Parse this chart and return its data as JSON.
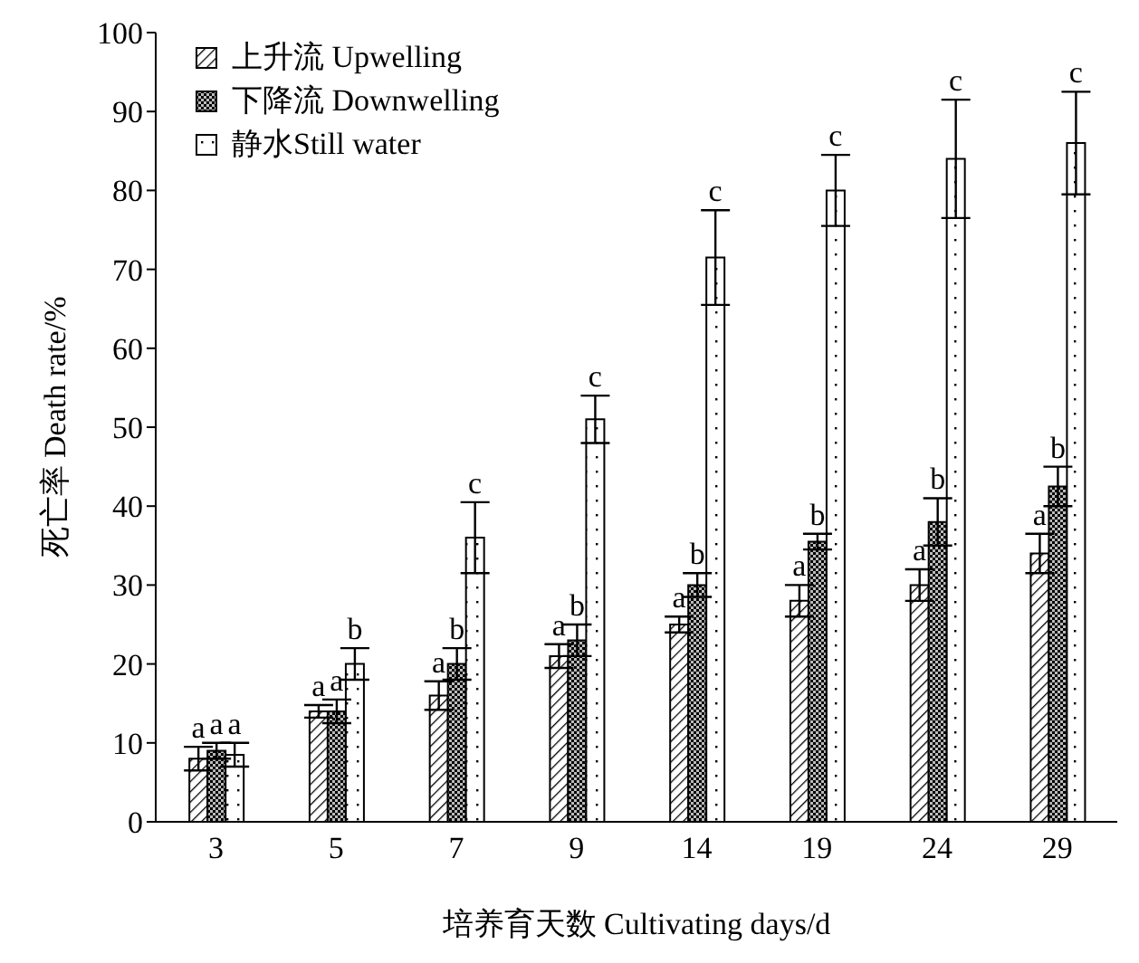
{
  "chart_data": {
    "type": "bar",
    "xlabel": "培养育天数 Cultivating days/d",
    "ylabel": "死亡率 Death rate/%",
    "categories": [
      "3",
      "5",
      "7",
      "9",
      "14",
      "19",
      "24",
      "29"
    ],
    "series": [
      {
        "name": "上升流 Upwelling",
        "color": "#000000",
        "values": [
          8,
          14,
          16,
          21,
          25,
          28,
          30,
          34
        ],
        "errors": [
          1.5,
          0.8,
          1.8,
          1.5,
          1,
          2,
          2,
          2.5
        ]
      },
      {
        "name": "下降流 Downwelling",
        "color": "#000000",
        "values": [
          9,
          14,
          20,
          23,
          30,
          35.5,
          38,
          42.5
        ],
        "errors": [
          1,
          1.5,
          2,
          2,
          1.5,
          1,
          3,
          2.5
        ]
      },
      {
        "name": "静水Still water",
        "color": "#000000",
        "values": [
          8.5,
          20,
          36,
          51,
          71.5,
          80,
          84,
          86
        ],
        "errors": [
          1.5,
          2,
          4.5,
          3,
          6,
          4.5,
          7.5,
          6.5
        ]
      }
    ],
    "annotations": [
      {
        "text": "a",
        "x": "3",
        "y": 9.5
      },
      {
        "text": "a",
        "x": "3",
        "y": 10
      },
      {
        "text": "a",
        "x": "3",
        "y": 10
      },
      {
        "text": "a",
        "x": "5",
        "y": 14.8
      },
      {
        "text": "a",
        "x": "5",
        "y": 15.5
      },
      {
        "text": "b",
        "x": "5",
        "y": 22
      },
      {
        "text": "a",
        "x": "7",
        "y": 17.8
      },
      {
        "text": "b",
        "x": "7",
        "y": 22
      },
      {
        "text": "c",
        "x": "7",
        "y": 40.5
      },
      {
        "text": "a",
        "x": "9",
        "y": 22.5
      },
      {
        "text": "b",
        "x": "9",
        "y": 25
      },
      {
        "text": "c",
        "x": "9",
        "y": 54
      },
      {
        "text": "a",
        "x": "14",
        "y": 26
      },
      {
        "text": "b",
        "x": "14",
        "y": 31.5
      },
      {
        "text": "c",
        "x": "14",
        "y": 77.5
      },
      {
        "text": "a",
        "x": "19",
        "y": 30
      },
      {
        "text": "b",
        "x": "19",
        "y": 36.5
      },
      {
        "text": "c",
        "x": "19",
        "y": 84.5
      },
      {
        "text": "a",
        "x": "24",
        "y": 32
      },
      {
        "text": "b",
        "x": "24",
        "y": 41
      },
      {
        "text": "c",
        "x": "24",
        "y": 91.5
      },
      {
        "text": "a",
        "x": "29",
        "y": 36.5
      },
      {
        "text": "b",
        "x": "29",
        "y": 45
      },
      {
        "text": "c",
        "x": "29",
        "y": 92.5
      }
    ],
    "ylim": [
      0,
      100
    ],
    "yticks": [
      0,
      10,
      20,
      30,
      40,
      50,
      60,
      70,
      80,
      90,
      100
    ],
    "legend": "top left",
    "grid": false
  }
}
